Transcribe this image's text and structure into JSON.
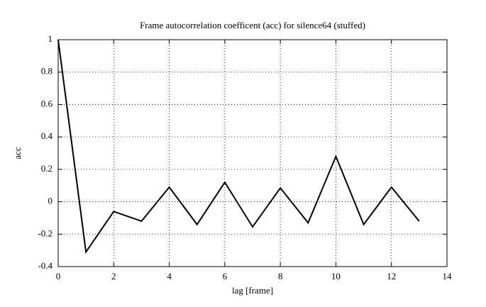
{
  "chart_data": {
    "type": "line",
    "title": "Frame autocorrelation coefficent (acc) for silence64 (stuffed)",
    "xlabel": "lag [frame]",
    "ylabel": "acc",
    "x": [
      0,
      1,
      2,
      3,
      4,
      5,
      6,
      7,
      8,
      9,
      10,
      11,
      12,
      13
    ],
    "series": [
      {
        "name": "acc",
        "color": "#000000",
        "values": [
          1,
          -0.31,
          -0.06,
          -0.12,
          0.09,
          -0.14,
          0.12,
          -0.155,
          0.085,
          -0.13,
          0.28,
          -0.14,
          0.09,
          -0.12
        ]
      }
    ],
    "xlim": [
      0,
      14
    ],
    "xticks": [
      0,
      2,
      4,
      6,
      8,
      10,
      12,
      14
    ],
    "ylim": [
      -0.4,
      1
    ],
    "yticks": [
      -0.4,
      -0.2,
      0,
      0.2,
      0.4,
      0.6,
      0.8,
      1
    ],
    "grid": true
  }
}
